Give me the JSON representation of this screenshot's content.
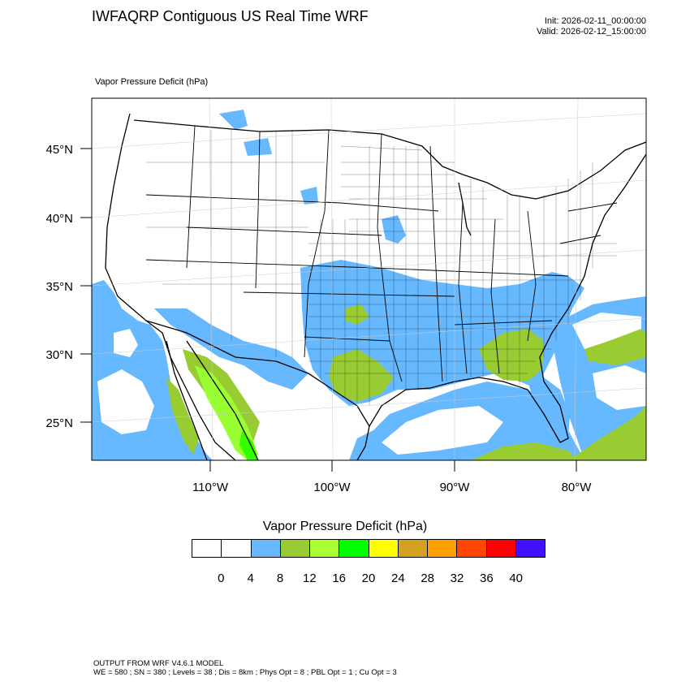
{
  "header": {
    "title": "IWFAQRP Contiguous US Real Time WRF",
    "init": "Init: 2026-02-11_00:00:00",
    "valid": "Valid: 2026-02-12_15:00:00",
    "panel_label": "Vapor Pressure Deficit   (hPa)"
  },
  "map": {
    "lat_labels": [
      "45°N",
      "40°N",
      "35°N",
      "30°N",
      "25°N"
    ],
    "lon_labels": [
      "110°W",
      "100°W",
      "90°W",
      "80°W"
    ],
    "colors": {
      "ocean_light_blue": "#66b8ff",
      "olive_green": "#99cc33",
      "bright_green": "#99ff33",
      "green": "#33ff00",
      "boundary": "#000000",
      "background": "#ffffff"
    }
  },
  "colorbar": {
    "title": "Vapor Pressure Deficit  (hPa)",
    "colors": [
      "#ffffff",
      "#ffffff",
      "#66b8ff",
      "#99cc33",
      "#aaff33",
      "#00ff00",
      "#ffff00",
      "#d4a020",
      "#ffa000",
      "#ff4500",
      "#ff0000",
      "#4010ff"
    ],
    "labels": [
      "0",
      "4",
      "8",
      "12",
      "16",
      "20",
      "24",
      "28",
      "32",
      "36",
      "40"
    ]
  },
  "footer": {
    "line1": "OUTPUT FROM WRF V4.6.1 MODEL",
    "line2": "WE = 580 ; SN = 380 ; Levels = 38 ; Dis = 8km ; Phys Opt = 8 ; PBL Opt = 1 ; Cu Opt = 3"
  }
}
